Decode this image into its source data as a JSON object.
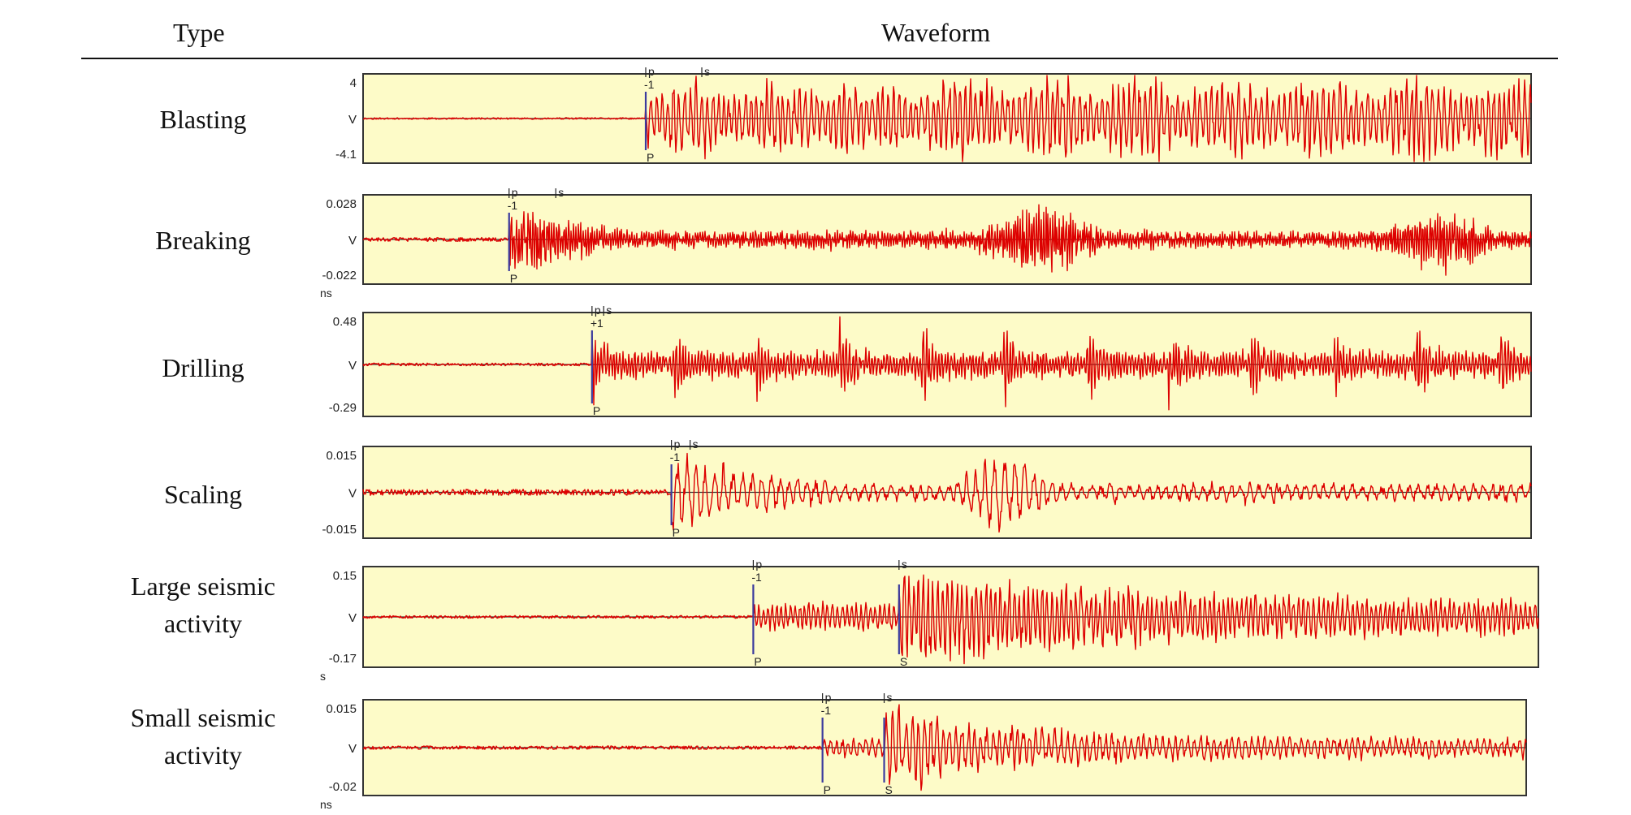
{
  "header": {
    "type_label": "Type",
    "waveform_label": "Waveform"
  },
  "colors": {
    "panel_bg": "#fdfbc8",
    "trace": "#dd0000",
    "pick_line": "#3b3b9e",
    "baseline": "#333333",
    "border": "#333333"
  },
  "rows": [
    {
      "label_lines": [
        "Blasting"
      ],
      "y_max": "4",
      "y_unit": "V",
      "y_min": "-4.1",
      "x_unit": "",
      "picks": [
        {
          "marker": "P",
          "code": "-1",
          "tag": "p",
          "t": 0.242
        },
        {
          "marker": "",
          "code": "",
          "tag": "s",
          "t": 0.29
        }
      ],
      "signal": {
        "onset": 0.242,
        "amp": 0.95,
        "noise": 0.02,
        "seed": 11,
        "period": 7,
        "style": "bursty"
      }
    },
    {
      "label_lines": [
        "Breaking"
      ],
      "y_max": "0.028",
      "y_unit": "V",
      "y_min": "-0.022",
      "x_unit": "ns",
      "picks": [
        {
          "marker": "P",
          "code": "-1",
          "tag": "p",
          "t": 0.125
        },
        {
          "marker": "",
          "code": "",
          "tag": "s",
          "t": 0.165
        }
      ],
      "signal": {
        "onset": 0.125,
        "amp": 0.9,
        "noise": 0.05,
        "seed": 23,
        "period": 3,
        "style": "breaking"
      }
    },
    {
      "label_lines": [
        "Drilling"
      ],
      "y_max": "0.48",
      "y_unit": "V",
      "y_min": "-0.29",
      "x_unit": "",
      "picks": [
        {
          "marker": "P",
          "code": "+1",
          "tag": "p",
          "t": 0.196
        },
        {
          "marker": "",
          "code": "",
          "tag": "s",
          "t": 0.206
        }
      ],
      "signal": {
        "onset": 0.196,
        "amp": 0.9,
        "noise": 0.03,
        "seed": 37,
        "period": 4,
        "style": "drilling"
      }
    },
    {
      "label_lines": [
        "Scaling"
      ],
      "y_max": "0.015",
      "y_unit": "V",
      "y_min": "-0.015",
      "x_unit": "",
      "picks": [
        {
          "marker": "P",
          "code": "-1",
          "tag": "p",
          "t": 0.264
        },
        {
          "marker": "",
          "code": "",
          "tag": "s",
          "t": 0.28
        }
      ],
      "signal": {
        "onset": 0.264,
        "amp": 0.85,
        "noise": 0.08,
        "seed": 41,
        "period": 12,
        "style": "scaling"
      }
    },
    {
      "label_lines": [
        "Large seismic",
        "activity"
      ],
      "y_max": "0.15",
      "y_unit": "V",
      "y_min": "-0.17",
      "x_unit": "s",
      "picks": [
        {
          "marker": "P",
          "code": "-1",
          "tag": "p",
          "t": 0.332
        },
        {
          "marker": "S",
          "code": "",
          "tag": "s",
          "t": 0.456
        }
      ],
      "signal": {
        "onset": 0.332,
        "amp": 0.95,
        "noise": 0.03,
        "seed": 53,
        "period": 6,
        "style": "quake"
      }
    },
    {
      "label_lines": [
        "Small seismic",
        "activity"
      ],
      "y_max": "0.015",
      "y_unit": "V",
      "y_min": "-0.02",
      "x_unit": "ns",
      "picks": [
        {
          "marker": "P",
          "code": "-1",
          "tag": "p",
          "t": 0.395
        },
        {
          "marker": "S",
          "code": "",
          "tag": "s",
          "t": 0.448
        }
      ],
      "signal": {
        "onset": 0.395,
        "amp": 0.9,
        "noise": 0.04,
        "seed": 67,
        "period": 8,
        "style": "small"
      }
    }
  ]
}
